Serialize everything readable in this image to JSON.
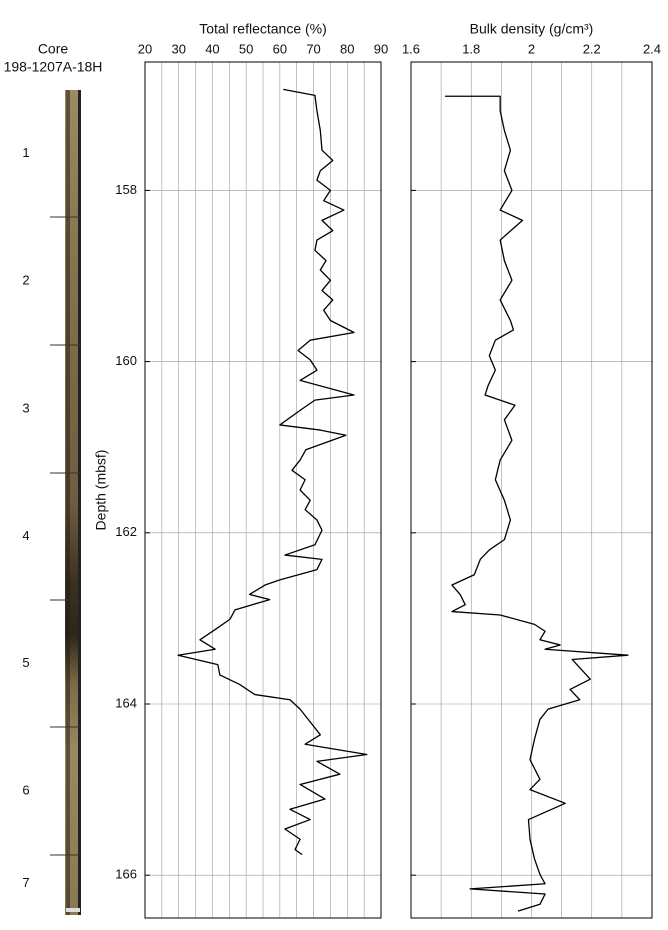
{
  "core": {
    "title": "Core",
    "id": "198-1207A-18H",
    "sections": [
      "1",
      "2",
      "3",
      "4",
      "5",
      "6",
      "7"
    ]
  },
  "chart_data": [
    {
      "type": "line",
      "orientation": "vertical",
      "title": "Total reflectance (%)",
      "y_label": "Depth (mbsf)",
      "xlim": [
        20,
        90
      ],
      "xticks": [
        20,
        30,
        40,
        50,
        60,
        70,
        80,
        90
      ],
      "minor_xticks": [
        25,
        35,
        45,
        55,
        65,
        75,
        85
      ],
      "ylim": [
        166.5,
        156.5
      ],
      "yticks": [
        158,
        160,
        162,
        164,
        166
      ],
      "show_ytick_labels": true,
      "grid": true,
      "color": "#000000",
      "x": [
        156.82,
        156.89,
        157.07,
        157.3,
        157.53,
        157.65,
        157.77,
        157.88,
        158.0,
        158.12,
        158.23,
        158.35,
        158.47,
        158.58,
        158.7,
        158.82,
        158.93,
        159.05,
        159.17,
        159.28,
        159.4,
        159.52,
        159.66,
        159.75,
        159.87,
        159.98,
        160.1,
        160.22,
        160.39,
        160.45,
        160.57,
        160.74,
        160.8,
        160.86,
        161.03,
        161.15,
        161.27,
        161.38,
        161.5,
        161.62,
        161.73,
        161.85,
        161.97,
        162.14,
        162.26,
        162.31,
        162.43,
        162.55,
        162.61,
        162.72,
        162.78,
        162.9,
        163.01,
        163.13,
        163.25,
        163.36,
        163.43,
        163.54,
        163.66,
        163.77,
        163.89,
        163.95,
        164.06,
        164.18,
        164.36,
        164.47,
        164.59,
        164.67,
        164.82,
        164.94,
        165.11,
        165.23,
        165.35,
        165.46,
        165.58,
        165.7,
        165.76
      ],
      "values": [
        61,
        70.4,
        71,
        72,
        72.5,
        75.7,
        72,
        71,
        75,
        73,
        79,
        72.5,
        75.7,
        71,
        70.4,
        73.7,
        72,
        75,
        72.5,
        75.7,
        73,
        75,
        82,
        69,
        65.4,
        69,
        71,
        66,
        82,
        70.4,
        66,
        60,
        72,
        79.6,
        67.7,
        66,
        63.6,
        67.5,
        66,
        69,
        67.5,
        71,
        72.5,
        70.4,
        61.5,
        72.5,
        71,
        60,
        55.6,
        51,
        57,
        46.7,
        45.2,
        40.8,
        36.3,
        40.8,
        29.8,
        41.6,
        42.2,
        48,
        52.6,
        63,
        66,
        68.4,
        72,
        67.5,
        85.8,
        71,
        77.8,
        66,
        73.4,
        63,
        69,
        61.5,
        66,
        64.5,
        66.6
      ]
    },
    {
      "type": "line",
      "orientation": "vertical",
      "title": "Bulk density (g/cm³)",
      "xlim": [
        1.6,
        2.4
      ],
      "xticks": [
        1.6,
        1.8,
        2,
        2.2,
        2.4
      ],
      "minor_xticks": [
        1.7,
        1.9,
        2.1,
        2.3
      ],
      "ylim": [
        166.5,
        156.5
      ],
      "yticks": [
        158,
        160,
        162,
        164,
        166
      ],
      "show_ytick_labels": false,
      "grid": true,
      "color": "#000000",
      "x": [
        156.9,
        156.9,
        157.07,
        157.3,
        157.53,
        157.77,
        158.0,
        158.23,
        158.35,
        158.58,
        158.82,
        159.05,
        159.28,
        159.52,
        159.63,
        159.75,
        159.93,
        160.1,
        160.28,
        160.39,
        160.51,
        160.68,
        160.92,
        161.15,
        161.38,
        161.62,
        161.85,
        162.08,
        162.2,
        162.31,
        162.49,
        162.61,
        162.72,
        162.84,
        162.92,
        162.96,
        163.07,
        163.15,
        163.25,
        163.31,
        163.36,
        163.43,
        163.48,
        163.71,
        163.83,
        163.95,
        164.06,
        164.18,
        164.41,
        164.65,
        164.88,
        165.0,
        165.16,
        165.35,
        165.58,
        165.81,
        165.99,
        166.1,
        166.16,
        166.22,
        166.34,
        166.42
      ],
      "values": [
        1.713,
        1.896,
        1.896,
        1.91,
        1.93,
        1.91,
        1.935,
        1.896,
        1.97,
        1.896,
        1.91,
        1.935,
        1.896,
        1.93,
        1.94,
        1.88,
        1.86,
        1.88,
        1.856,
        1.846,
        1.945,
        1.91,
        1.935,
        1.896,
        1.88,
        1.91,
        1.93,
        1.91,
        1.86,
        1.83,
        1.81,
        1.736,
        1.763,
        1.78,
        1.736,
        1.896,
        2.01,
        2.045,
        2.028,
        2.095,
        2.045,
        2.32,
        2.135,
        2.195,
        2.128,
        2.16,
        2.055,
        2.028,
        2.01,
        1.995,
        2.028,
        1.995,
        2.112,
        1.99,
        1.995,
        2.01,
        2.028,
        2.045,
        1.796,
        2.045,
        2.028,
        1.955
      ]
    }
  ]
}
